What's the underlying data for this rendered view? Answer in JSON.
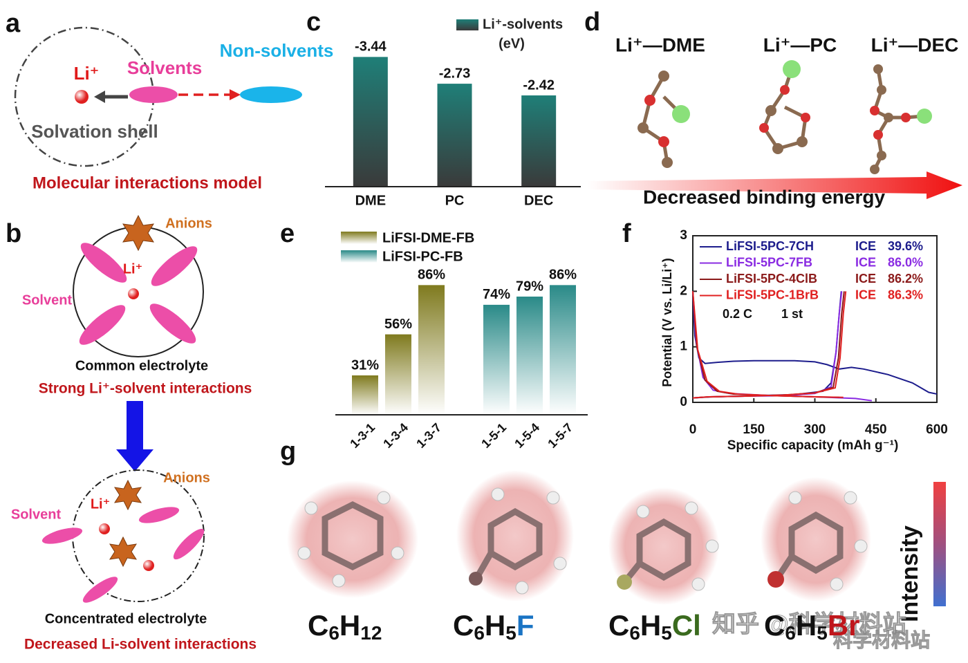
{
  "panels": {
    "labels": [
      "a",
      "b",
      "c",
      "d",
      "e",
      "f",
      "g"
    ]
  },
  "panel_a": {
    "li": "Li⁺",
    "solvents": "Solvents",
    "non_solvents": "Non-solvents",
    "shell": "Solvation shell",
    "caption": "Molecular interactions model"
  },
  "panel_b": {
    "common": {
      "anions": "Anions",
      "li": "Li⁺",
      "solvent": "Solvent",
      "name": "Common electrolyte",
      "note": "Strong Li⁺-solvent interactions"
    },
    "concentrated": {
      "anions": "Anions",
      "li": "Li⁺",
      "solvent": "Solvent",
      "name": "Concentrated electrolyte",
      "note": "Decreased Li-solvent interactions"
    }
  },
  "panel_d": {
    "labels": [
      "Li⁺—DME",
      "Li⁺—PC",
      "Li⁺—DEC"
    ],
    "arrow": "Decreased binding energy"
  },
  "panel_g": {
    "molecules": [
      {
        "parts": [
          {
            "t": "C"
          },
          {
            "t": "6",
            "sub": true
          },
          {
            "t": "H"
          },
          {
            "t": "12",
            "sub": true
          }
        ]
      },
      {
        "parts": [
          {
            "t": "C"
          },
          {
            "t": "6",
            "sub": true
          },
          {
            "t": "H"
          },
          {
            "t": "5",
            "sub": true
          },
          {
            "t": "F",
            "color": "#1a74c4"
          }
        ]
      },
      {
        "parts": [
          {
            "t": "C"
          },
          {
            "t": "6",
            "sub": true
          },
          {
            "t": "H"
          },
          {
            "t": "5",
            "sub": true
          },
          {
            "t": "Cl",
            "color": "#3a6a1e"
          }
        ]
      },
      {
        "parts": [
          {
            "t": "C"
          },
          {
            "t": "6",
            "sub": true
          },
          {
            "t": "H"
          },
          {
            "t": "5",
            "sub": true
          },
          {
            "t": "Br",
            "color": "#c0161b"
          }
        ]
      }
    ],
    "colorbar": "Intensity"
  },
  "watermark": [
    "知乎 @科学材料站",
    "科学材料站"
  ],
  "chart_data": [
    {
      "type": "bar",
      "categories": [
        "DME",
        "PC",
        "DEC"
      ],
      "values": [
        -3.44,
        -2.73,
        -2.42
      ],
      "series_name": "Li⁺-solvents",
      "unit": "(eV)",
      "color": "#1f7f78",
      "ylim": [
        0,
        -4.4
      ]
    },
    {
      "type": "bar",
      "categories": [
        "1-3-1",
        "1-3-4",
        "1-3-7",
        "1-5-1",
        "1-5-4",
        "1-5-7"
      ],
      "ylim": [
        7,
        95
      ],
      "series": [
        {
          "name": "LiFSI-DME-FB",
          "color": "#7f7a1e",
          "values": [
            31,
            56,
            86,
            null,
            null,
            null
          ],
          "value_labels": [
            "31%",
            "56%",
            "86%",
            null,
            null,
            null
          ]
        },
        {
          "name": "LiFSI-PC-FB",
          "color": "#2a8a88",
          "values": [
            null,
            null,
            null,
            74,
            79,
            86
          ],
          "value_labels": [
            null,
            null,
            null,
            "74%",
            "79%",
            "86%"
          ]
        }
      ]
    },
    {
      "type": "line",
      "xlabel": "Specific capacity (mAh g⁻¹)",
      "ylabel": "Potential (V vs. Li/Li⁺)",
      "xlim": [
        0,
        600
      ],
      "xticks": [
        0,
        150,
        300,
        450,
        600
      ],
      "ylim": [
        0,
        3
      ],
      "yticks": [
        0,
        1,
        2,
        3
      ],
      "annotations": [
        "0.2 C",
        "1 st"
      ],
      "series": [
        {
          "name": "LiFSI-5PC-7CH",
          "color": "#1c1c8c",
          "ice_label": "ICE",
          "ice": "39.6%",
          "x": [
            0,
            5,
            15,
            30,
            60,
            100,
            150,
            200,
            250,
            300,
            330,
            360,
            390,
            420,
            480,
            540,
            580,
            600,
            null,
            0,
            50,
            150,
            250,
            320,
            340,
            352,
            360,
            365
          ],
          "values": [
            2.0,
            1.2,
            0.8,
            0.7,
            0.72,
            0.74,
            0.75,
            0.75,
            0.75,
            0.73,
            0.68,
            0.6,
            0.63,
            0.6,
            0.5,
            0.35,
            0.18,
            0.15,
            null,
            0.08,
            0.1,
            0.12,
            0.14,
            0.2,
            0.35,
            0.9,
            1.6,
            2.0
          ]
        },
        {
          "name": "LiFSI-5PC-7FB",
          "color": "#8a2be2",
          "ice_label": "ICE",
          "ice": "86.0%",
          "x": [
            0,
            8,
            25,
            50,
            90,
            200,
            300,
            400,
            440,
            null,
            0,
            40,
            120,
            220,
            300,
            340,
            352,
            360,
            366
          ],
          "values": [
            2.0,
            1.1,
            0.45,
            0.22,
            0.16,
            0.12,
            0.1,
            0.07,
            0.03,
            null,
            0.08,
            0.1,
            0.11,
            0.12,
            0.16,
            0.28,
            0.9,
            1.6,
            2.0
          ]
        },
        {
          "name": "LiFSI-5PC-4ClB",
          "color": "#8b1a1a",
          "ice_label": "ICE",
          "ice": "86.2%",
          "x": [
            0,
            10,
            30,
            60,
            100,
            200,
            300,
            360,
            null,
            0,
            40,
            120,
            220,
            300,
            345,
            358,
            366,
            372
          ],
          "values": [
            2.0,
            1.0,
            0.4,
            0.2,
            0.15,
            0.12,
            0.1,
            0.09,
            null,
            0.08,
            0.1,
            0.11,
            0.13,
            0.17,
            0.27,
            0.8,
            1.6,
            2.0
          ]
        },
        {
          "name": "LiFSI-5PC-1BrB",
          "color": "#e02020",
          "ice_label": "ICE",
          "ice": "86.3%",
          "x": [
            0,
            12,
            35,
            65,
            110,
            200,
            300,
            370,
            null,
            0,
            40,
            120,
            220,
            300,
            350,
            362,
            370,
            376
          ],
          "values": [
            2.0,
            0.95,
            0.38,
            0.2,
            0.15,
            0.12,
            0.1,
            0.09,
            null,
            0.08,
            0.1,
            0.11,
            0.13,
            0.17,
            0.26,
            0.8,
            1.6,
            2.0
          ]
        }
      ]
    }
  ]
}
